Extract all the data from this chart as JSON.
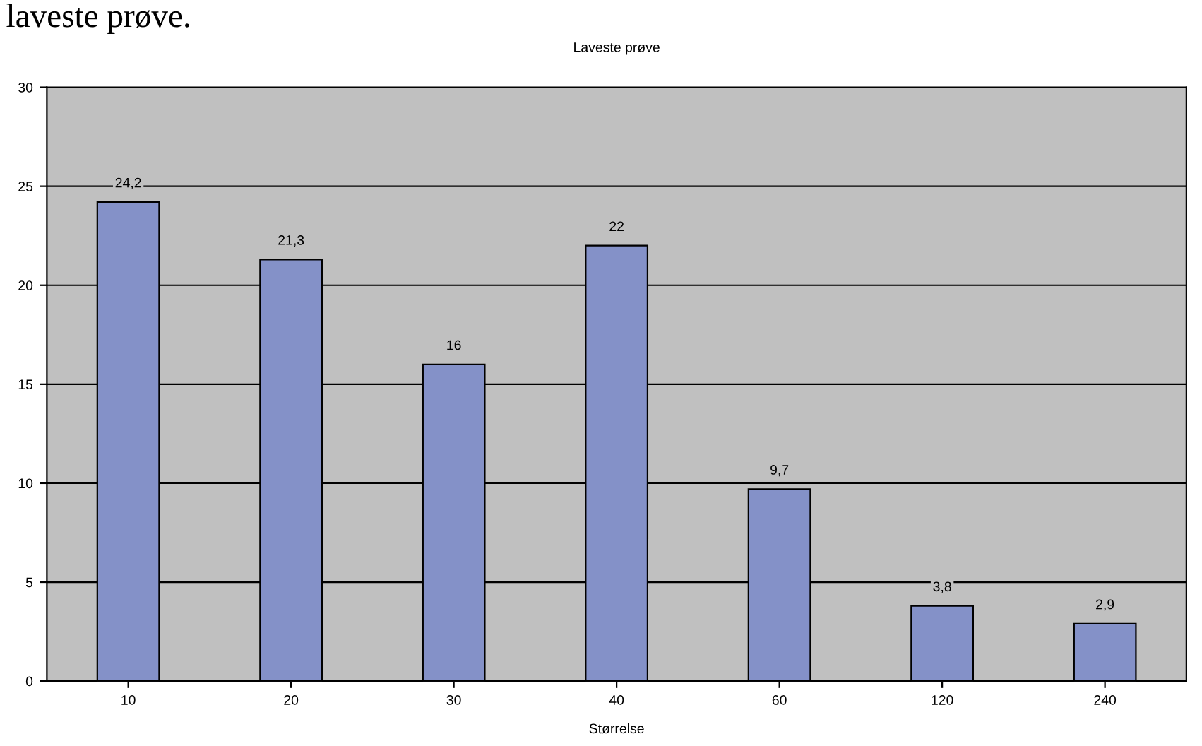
{
  "chart_data": {
    "type": "bar",
    "title": "Laveste prøve",
    "xlabel": "Størrelse",
    "categories": [
      "10",
      "20",
      "30",
      "40",
      "60",
      "120",
      "240"
    ],
    "values": [
      24.2,
      21.3,
      16,
      22,
      9.7,
      3.8,
      2.9
    ],
    "value_labels": [
      "24,2",
      "21,3",
      "16",
      "22",
      "9,7",
      "3,8",
      "2,9"
    ],
    "color": "#8491c8",
    "ylim": [
      0,
      30
    ],
    "yticks": [
      0,
      5,
      10,
      15,
      20,
      25,
      30
    ],
    "grid": "y",
    "annotations": [
      "laveste prøve."
    ]
  }
}
